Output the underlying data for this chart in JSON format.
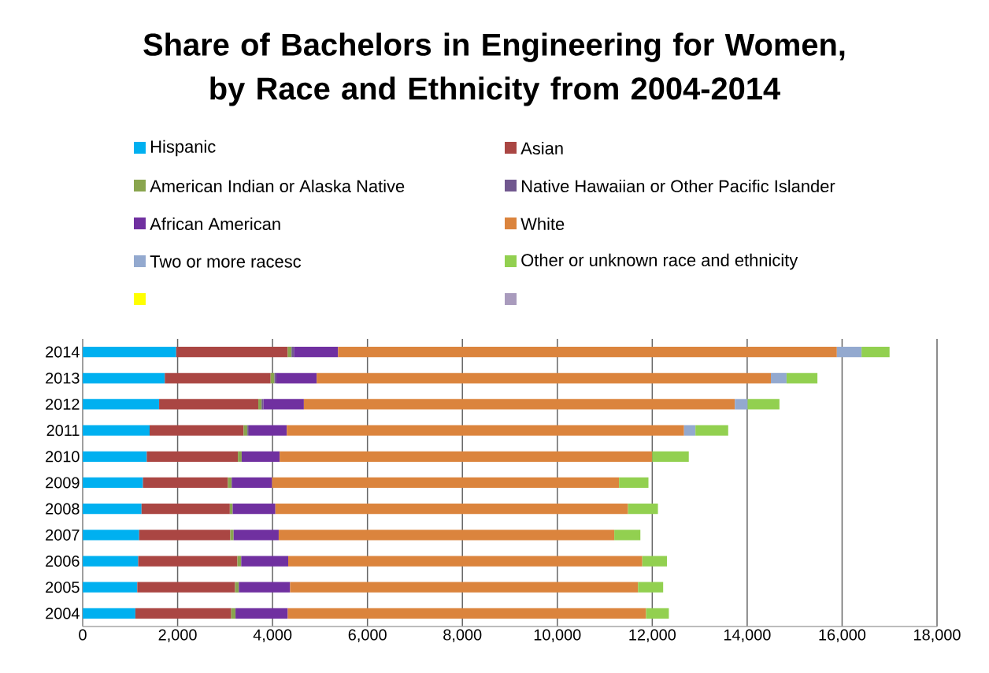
{
  "chart_data": {
    "type": "bar",
    "orientation": "horizontal",
    "stacked": true,
    "title": "Share of Bachelors in Engineering for Women, by Race and Ethnicity from 2004-2014",
    "categories": [
      "2014",
      "2013",
      "2012",
      "2011",
      "2010",
      "2009",
      "2008",
      "2007",
      "2006",
      "2005",
      "2004"
    ],
    "series": [
      {
        "name": "Hispanic",
        "color": "#00b0f0",
        "values": [
          1970,
          1730,
          1610,
          1410,
          1350,
          1270,
          1240,
          1190,
          1170,
          1150,
          1110
        ]
      },
      {
        "name": "Asian",
        "color": "#aa4643",
        "values": [
          2350,
          2230,
          2090,
          1980,
          1920,
          1790,
          1860,
          1920,
          2090,
          2060,
          2020
        ]
      },
      {
        "name": "American Indian or Alaska Native",
        "color": "#89a54e",
        "values": [
          80,
          80,
          70,
          80,
          80,
          80,
          60,
          70,
          80,
          80,
          90
        ]
      },
      {
        "name": "Native Hawaiian or Other Pacific Islander",
        "color": "#71588f",
        "values": [
          50,
          40,
          40,
          30,
          null,
          null,
          null,
          null,
          null,
          null,
          null
        ]
      },
      {
        "name": "African American",
        "color": "#7030a0",
        "values": [
          930,
          850,
          850,
          800,
          800,
          850,
          900,
          950,
          990,
          1080,
          1100
        ]
      },
      {
        "name": "White",
        "color": "#db843d",
        "values": [
          10510,
          9570,
          9080,
          8370,
          7850,
          7310,
          7430,
          7070,
          7460,
          7330,
          7550
        ]
      },
      {
        "name": "Two or more racesc",
        "color": "#93a9cf",
        "values": [
          520,
          330,
          270,
          240,
          null,
          null,
          null,
          null,
          null,
          null,
          null
        ]
      },
      {
        "name": "Other or unknown race and ethnicity",
        "color": "#92d050",
        "values": [
          590,
          650,
          670,
          690,
          770,
          620,
          630,
          550,
          520,
          530,
          480
        ]
      },
      {
        "color": "#ffff00",
        "values": [
          null,
          null,
          null,
          null,
          null,
          null,
          null,
          null,
          null,
          null,
          null
        ]
      },
      {
        "color": "#a99bbd",
        "values": [
          null,
          null,
          null,
          null,
          null,
          null,
          null,
          null,
          null,
          null,
          null
        ]
      }
    ],
    "xlim": [
      0,
      18000
    ],
    "xticks": [
      0,
      {
        "value": 2000,
        "label": "2,000"
      },
      {
        "value": 4000,
        "label": "4,000"
      },
      {
        "value": 6000,
        "label": "6,000"
      },
      {
        "value": 8000,
        "label": "8,000"
      },
      {
        "value": 10000,
        "label": "10,000"
      },
      {
        "value": 12000,
        "label": "12,000"
      },
      {
        "value": 14000,
        "label": "14,000"
      },
      {
        "value": 16000,
        "label": "16,000"
      },
      {
        "value": 18000,
        "label": "18,000"
      }
    ],
    "grid": "x",
    "legend": "top"
  }
}
